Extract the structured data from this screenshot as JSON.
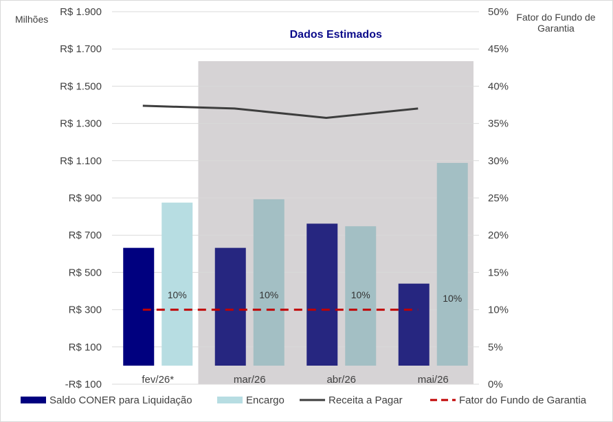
{
  "chart_data": {
    "type": "bar",
    "categories": [
      "fev/26*",
      "mar/26",
      "abr/26",
      "mai/26"
    ],
    "series": [
      {
        "name": "Saldo CONER para Liquidação",
        "kind": "bar",
        "axis": "left",
        "values": [
          632,
          632,
          762,
          440
        ],
        "colors": [
          "#00007f",
          "#262680",
          "#262680",
          "#262680"
        ]
      },
      {
        "name": "Encargo",
        "kind": "bar",
        "axis": "left",
        "values": [
          875,
          893,
          748,
          1088
        ],
        "colors": [
          "#b7dde2",
          "#a3bfc4",
          "#a3bfc4",
          "#a3bfc4"
        ]
      },
      {
        "name": "Receita a Pagar",
        "kind": "line",
        "axis": "left",
        "values": [
          1395,
          1380,
          1330,
          1380
        ],
        "color": "#3d3d3d"
      },
      {
        "name": "Fator do Fundo de Garantia",
        "kind": "line-dashed",
        "axis": "right",
        "values": [
          0.1,
          0.1,
          0.1,
          0.1
        ],
        "color": "#c00000"
      }
    ],
    "data_labels": [
      "10%",
      "10%",
      "10%",
      "10%"
    ],
    "left_axis": {
      "title": "Milhões",
      "ylim": [
        -100,
        1900
      ],
      "ticks": [
        -100,
        100,
        300,
        500,
        700,
        900,
        1100,
        1300,
        1500,
        1700,
        1900
      ],
      "tick_labels": [
        "-R$ 100",
        "R$ 100",
        "R$ 300",
        "R$ 500",
        "R$ 700",
        "R$ 900",
        "R$ 1.100",
        "R$ 1.300",
        "R$ 1.500",
        "R$ 1.700",
        "R$ 1.900"
      ]
    },
    "right_axis": {
      "title_lines": [
        "Fator do Fundo de",
        "Garantia"
      ],
      "ylim": [
        0,
        0.5
      ],
      "ticks": [
        0,
        0.05,
        0.1,
        0.15,
        0.2,
        0.25,
        0.3,
        0.35,
        0.4,
        0.45,
        0.5
      ],
      "tick_labels": [
        "0%",
        "5%",
        "10%",
        "15%",
        "20%",
        "25%",
        "30%",
        "35%",
        "40%",
        "45%",
        "50%"
      ]
    },
    "shaded_region": {
      "label": "Dados Estimados",
      "from_category": 1,
      "to_category": 3,
      "color": "#d6d3d5"
    },
    "gridlines": true,
    "legend_position": "bottom",
    "legend": [
      "Saldo CONER para Liquidação",
      "Encargo",
      "Receita a Pagar",
      "Fator do Fundo de Garantia"
    ]
  }
}
